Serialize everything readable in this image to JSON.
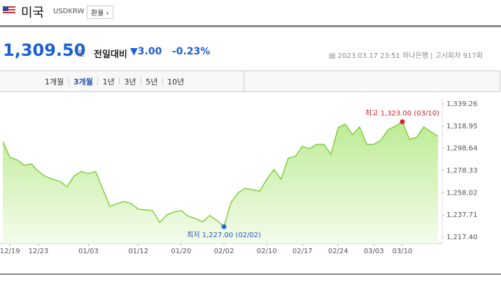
{
  "header": {
    "country": "미국",
    "code": "USDKRW",
    "button": "환율"
  },
  "price": {
    "value": "1,309.50",
    "unit": "원",
    "compare_label": "전일대비",
    "change": "3.00",
    "change_pct": "-0.23%",
    "datetime": "2023.03.17 23:51",
    "bank": "하나은행",
    "round": "고시회차 917회"
  },
  "tabs": [
    "1개월",
    "3개월",
    "1년",
    "3년",
    "5년",
    "10년"
  ],
  "chart": {
    "type": "line",
    "color": "#7fcf3f",
    "categories": [
      null,
      "12/19",
      null,
      null,
      null,
      "12/23",
      null,
      null,
      null,
      null,
      null,
      null,
      "01/03",
      null,
      null,
      null,
      null,
      null,
      null,
      "01/12",
      null,
      null,
      null,
      null,
      null,
      "01/20",
      null,
      null,
      null,
      null,
      null,
      "02/02",
      null,
      null,
      null,
      null,
      null,
      "02/10",
      null,
      null,
      null,
      null,
      "02/17",
      null,
      null,
      null,
      null,
      "02/24",
      null,
      null,
      null,
      null,
      "03/03",
      null,
      null,
      null,
      "03/10",
      null,
      null,
      null,
      null,
      null
    ],
    "values": [
      1304.8,
      1290.2,
      1288.2,
      1283.1,
      1284.4,
      1277.4,
      1272.9,
      1270.4,
      1268.5,
      1263.4,
      1273.5,
      1277.4,
      1275.5,
      1277.4,
      1261.5,
      1245.5,
      1248.0,
      1250.0,
      1248.0,
      1243.0,
      1242.3,
      1241.7,
      1230.8,
      1237.8,
      1240.4,
      1241.7,
      1236.5,
      1234.6,
      1231.4,
      1237.2,
      1232.7,
      1227.0,
      1249.3,
      1258.2,
      1262.0,
      1260.8,
      1259.5,
      1270.4,
      1279.3,
      1270.4,
      1289.5,
      1291.4,
      1300.4,
      1298.4,
      1302.3,
      1302.3,
      1293.3,
      1317.6,
      1320.8,
      1311.2,
      1318.2,
      1302.3,
      1302.3,
      1306.1,
      1315.7,
      1318.9,
      1323.0,
      1306.8,
      1308.7,
      1318.2,
      1313.8,
      1309.5
    ],
    "ylim": [
      1217.4,
      1339.26
    ],
    "yticks": [
      {
        "value": 1339.26,
        "label": "1,339.26"
      },
      {
        "value": 1318.95,
        "label": "1,318.95"
      },
      {
        "value": 1298.64,
        "label": "1,298.64"
      },
      {
        "value": 1278.33,
        "label": "1,278.33"
      },
      {
        "value": 1258.02,
        "label": "1,258.02"
      },
      {
        "value": 1237.71,
        "label": "1,237.71"
      },
      {
        "value": 1217.4,
        "label": "1,217.40"
      }
    ],
    "max_label": "최고 1,323.00 (03/10)",
    "min_label": "최저 1,227.00 (02/02)"
  }
}
